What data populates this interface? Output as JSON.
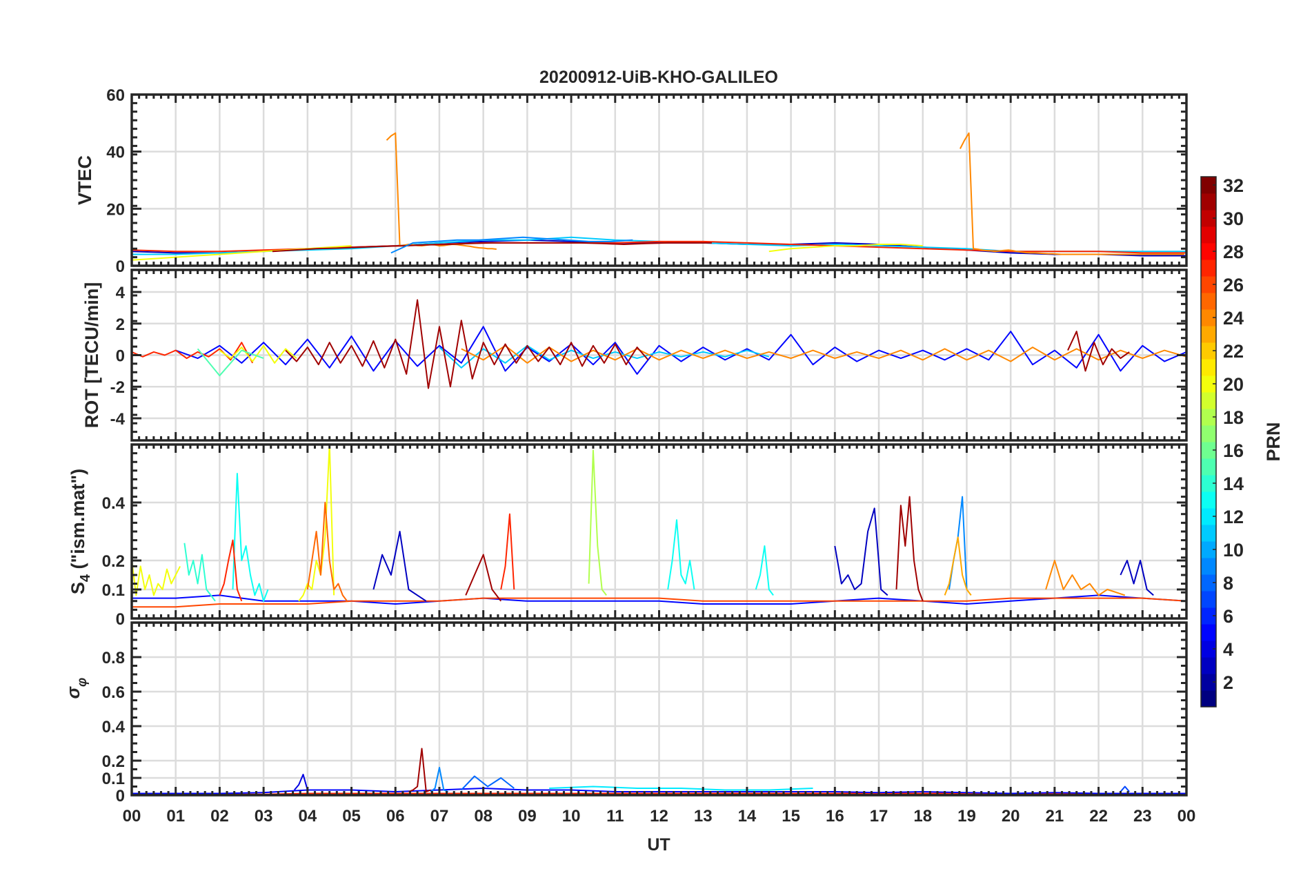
{
  "chart_data": {
    "type": "line",
    "title": "20200912-UiB-KHO-GALILEO",
    "xlabel": "UT",
    "xlim": [
      0,
      24
    ],
    "xticks": [
      "00",
      "01",
      "02",
      "03",
      "04",
      "05",
      "06",
      "07",
      "08",
      "09",
      "10",
      "11",
      "12",
      "13",
      "14",
      "15",
      "16",
      "17",
      "18",
      "19",
      "20",
      "21",
      "22",
      "23",
      "00"
    ],
    "colorbar": {
      "label": "PRN",
      "range": [
        1,
        32
      ],
      "colormap": "jet",
      "ticks": [
        "2",
        "4",
        "6",
        "8",
        "10",
        "12",
        "14",
        "16",
        "18",
        "20",
        "22",
        "24",
        "26",
        "28",
        "30",
        "32"
      ]
    },
    "panels": [
      {
        "name": "vtec",
        "ylabel": "VTEC",
        "ylim": [
          0,
          60
        ],
        "yticks": [
          0,
          20,
          40,
          60
        ],
        "ytick_labels": [
          "0",
          "20",
          "40",
          "60"
        ],
        "series": [
          {
            "prn": 3,
            "t0": 0,
            "dt": 1,
            "v": [
              5,
              4.5,
              4.5,
              5,
              6,
              6.5,
              7,
              8,
              8.5,
              9,
              8.5,
              8,
              8,
              8,
              7.5,
              7.5,
              8,
              7.5,
              6.5,
              5.5,
              4.5,
              4,
              4,
              3.5,
              3.5
            ]
          },
          {
            "prn": 11,
            "t0": 0,
            "dt": 1,
            "v": [
              4,
              4,
              4.5,
              5,
              5.5,
              6,
              7,
              8,
              9,
              9,
              10,
              9,
              8.5,
              8,
              7.5,
              7,
              7.5,
              7,
              6.5,
              6,
              5,
              5,
              5,
              5,
              5
            ]
          },
          {
            "prn": 27,
            "t0": 0,
            "dt": 1,
            "v": [
              5.5,
              5,
              5,
              5.5,
              6,
              6.5,
              7,
              7.5,
              8,
              8,
              8,
              8,
              8.5,
              8.5,
              8,
              7.5,
              7,
              6.5,
              6,
              5.5,
              5,
              5,
              5,
              4.5,
              4.5
            ]
          },
          {
            "prn": 24,
            "t0": 5.8,
            "dt": 0.1,
            "v": [
              44,
              45.5,
              46.5,
              7,
              7.2,
              7.5,
              7.3,
              7.1,
              7,
              7.2,
              7.4,
              7.3,
              7,
              7.1,
              7.3,
              7.5,
              7.4,
              7.2,
              7,
              6.8,
              6.5,
              6.3,
              6.2,
              6,
              6,
              5.8
            ]
          },
          {
            "prn": 24,
            "t0": 18.85,
            "dt": 0.1,
            "v": [
              41,
              44,
              46.5,
              6,
              5.8,
              5.5,
              5.3,
              5.2,
              5,
              5.2,
              5.4,
              5.5,
              5.3,
              5,
              4.8,
              4.6,
              4.5,
              4.5,
              4.4,
              4.3,
              4.2,
              4.2,
              4.1,
              4,
              4,
              4,
              4,
              4,
              4,
              4,
              4,
              4,
              4,
              4,
              4,
              4,
              4,
              4,
              4,
              4,
              4,
              4,
              4,
              4,
              4,
              4,
              4,
              4,
              4,
              4,
              4,
              4
            ]
          },
          {
            "prn": 20,
            "t0": 0,
            "dt": 0.5,
            "v": [
              2,
              2.5,
              3,
              3.5,
              4,
              4.5,
              5,
              5.5,
              6,
              6.5,
              7
            ]
          },
          {
            "prn": 20,
            "t0": 14.5,
            "dt": 0.5,
            "v": [
              5,
              6,
              6.5,
              7,
              7,
              7.5,
              7.5,
              7
            ]
          },
          {
            "prn": 31,
            "t0": 3.2,
            "dt": 0.5,
            "v": [
              5,
              5.5,
              6,
              6.2,
              6.5,
              6.8,
              7,
              7.3,
              7.5,
              7.8,
              8,
              8,
              8,
              8,
              8,
              7.8,
              7.5,
              7.8,
              8,
              8,
              8
            ]
          },
          {
            "prn": 9,
            "t0": 5.9,
            "dt": 0.5,
            "v": [
              4.5,
              8,
              8.5,
              9,
              9,
              9.5,
              10,
              9.5,
              9,
              8.5,
              8.5,
              9
            ]
          }
        ]
      },
      {
        "name": "rot",
        "ylabel": "ROT [TECU/min]",
        "ylim": [
          -5.4,
          5.4
        ],
        "yticks": [
          -4,
          -2,
          0,
          2,
          4
        ],
        "ytick_labels": [
          "-4",
          "-2",
          "0",
          "2",
          "4"
        ],
        "series": [
          {
            "prn": 5,
            "t0": 1,
            "dt": 0.5,
            "v": [
              0.3,
              -0.2,
              0.6,
              -0.5,
              0.8,
              -0.6,
              1.0,
              -0.8,
              1.2,
              -1.0,
              0.9,
              -0.7,
              0.6,
              -0.5,
              1.8,
              -1.0,
              0.5,
              -0.4,
              0.7,
              -0.6,
              0.8,
              -1.2,
              0.6,
              -0.4,
              0.5,
              -0.3,
              0.4,
              -0.3,
              1.3,
              -0.6,
              0.5,
              -0.4,
              0.3,
              -0.2,
              0.3,
              -0.3,
              0.4,
              -0.3,
              1.5,
              -0.6,
              0.3,
              -0.8,
              1.3,
              -1.0,
              0.6,
              -0.4,
              0.2
            ]
          },
          {
            "prn": 27,
            "t0": 0,
            "dt": 0.25,
            "v": [
              0.2,
              -0.1,
              0.2,
              0,
              0.3,
              -0.2,
              0.2,
              -0.1,
              0.4,
              -0.3,
              0.8,
              -0.5
            ]
          },
          {
            "prn": 20,
            "t0": 2,
            "dt": 0.25,
            "v": [
              0.3,
              -0.2,
              0.5,
              -0.4,
              0.6,
              -0.5,
              0.4,
              -0.2
            ]
          },
          {
            "prn": 15,
            "t0": 1.5,
            "dt": 0.5,
            "v": [
              0.4,
              -1.3,
              0.3,
              -0.2
            ]
          },
          {
            "prn": 11,
            "t0": 7,
            "dt": 0.5,
            "v": [
              0.5,
              -0.8,
              0.4,
              -0.5,
              0.6,
              -0.3,
              0.3,
              -0.2,
              0.2,
              -0.2,
              0.2,
              -0.1,
              0.2,
              -0.1,
              0.3,
              -0.1
            ]
          },
          {
            "prn": 24,
            "t0": 7.5,
            "dt": 0.5,
            "v": [
              0.4,
              -0.3,
              0.6,
              -0.5,
              0.5,
              -0.4,
              0.3,
              -0.3,
              0.4,
              -0.3,
              0.3,
              -0.2,
              0.3,
              -0.2,
              0.2,
              -0.2,
              0.3,
              -0.2,
              0.2,
              -0.2,
              0.3,
              -0.3,
              0.4,
              -0.3,
              0.3,
              -0.4,
              0.5,
              -0.3,
              0.4,
              -0.3,
              0.3,
              -0.2,
              0.3,
              -0.1
            ]
          },
          {
            "prn": 31,
            "t0": 3.5,
            "dt": 0.25,
            "v": [
              0.3,
              -0.4,
              0.5,
              -0.6,
              0.8,
              -0.5,
              0.6,
              -0.7,
              0.9,
              -0.8,
              1.0,
              -1.2,
              3.5,
              -2.1,
              1.8,
              -2.0,
              2.2,
              -1.5,
              0.8,
              -0.6,
              0.7,
              -0.5,
              0.6,
              -0.4,
              0.5,
              -0.6,
              0.8,
              -0.7,
              0.6,
              -0.5,
              0.7,
              -0.6,
              0.5,
              -0.3
            ]
          },
          {
            "prn": 31,
            "t0": 21.3,
            "dt": 0.2,
            "v": [
              0.3,
              1.5,
              -1.0,
              0.8,
              -0.6,
              0.4,
              -0.2,
              0.2
            ]
          }
        ]
      },
      {
        "name": "s4",
        "ylabel": "S4 (\"ism.mat\")",
        "ylim": [
          0,
          0.6
        ],
        "yticks": [
          0,
          0.1,
          0.2,
          0.4
        ],
        "ytick_labels": [
          "0",
          "0.1",
          "0.2",
          "0.4"
        ],
        "series": [
          {
            "prn": 5,
            "t0": 0,
            "dt": 1,
            "v": [
              0.07,
              0.07,
              0.08,
              0.06,
              0.06,
              0.06,
              0.05,
              0.06,
              0.07,
              0.06,
              0.06,
              0.06,
              0.06,
              0.05,
              0.05,
              0.05,
              0.06,
              0.07,
              0.06,
              0.05,
              0.06,
              0.07,
              0.08,
              0.07,
              0.06
            ]
          },
          {
            "prn": 26,
            "t0": 0,
            "dt": 1,
            "v": [
              0.04,
              0.04,
              0.05,
              0.05,
              0.05,
              0.06,
              0.06,
              0.06,
              0.07,
              0.07,
              0.07,
              0.07,
              0.07,
              0.06,
              0.06,
              0.06,
              0.06,
              0.06,
              0.06,
              0.06,
              0.07,
              0.07,
              0.07,
              0.07,
              0.06
            ]
          },
          {
            "prn": 20,
            "t0": 0,
            "dt": 0.1,
            "v": [
              0.2,
              0.08,
              0.18,
              0.1,
              0.15,
              0.08,
              0.12,
              0.1,
              0.17,
              0.12,
              0.15,
              0.18
            ]
          },
          {
            "prn": 20,
            "t0": 3.8,
            "dt": 0.1,
            "v": [
              0.06,
              0.08,
              0.12,
              0.1,
              0.2,
              0.15,
              0.28,
              0.6,
              0.08
            ]
          },
          {
            "prn": 18,
            "t0": 10.4,
            "dt": 0.1,
            "v": [
              0.12,
              0.58,
              0.25,
              0.1,
              0.08
            ]
          },
          {
            "prn": 14,
            "t0": 1.2,
            "dt": 0.1,
            "v": [
              0.26,
              0.15,
              0.2,
              0.12,
              0.22,
              0.1,
              0.08,
              0.06
            ]
          },
          {
            "prn": 13,
            "t0": 2.3,
            "dt": 0.1,
            "v": [
              0.1,
              0.5,
              0.2,
              0.25,
              0.15,
              0.08,
              0.12,
              0.06,
              0.1
            ]
          },
          {
            "prn": 13,
            "t0": 12.2,
            "dt": 0.1,
            "v": [
              0.1,
              0.2,
              0.34,
              0.15,
              0.12,
              0.2,
              0.1
            ]
          },
          {
            "prn": 13,
            "t0": 14.2,
            "dt": 0.1,
            "v": [
              0.1,
              0.15,
              0.25,
              0.1,
              0.08
            ]
          },
          {
            "prn": 27,
            "t0": 2.0,
            "dt": 0.1,
            "v": [
              0.08,
              0.12,
              0.2,
              0.27,
              0.1,
              0.06
            ]
          },
          {
            "prn": 27,
            "t0": 8.4,
            "dt": 0.1,
            "v": [
              0.1,
              0.18,
              0.36,
              0.1
            ]
          },
          {
            "prn": 25,
            "t0": 4.0,
            "dt": 0.1,
            "v": [
              0.1,
              0.2,
              0.3,
              0.15,
              0.4,
              0.2,
              0.1,
              0.12,
              0.08,
              0.06
            ]
          },
          {
            "prn": 31,
            "t0": 7.6,
            "dt": 0.2,
            "v": [
              0.08,
              0.15,
              0.22,
              0.1,
              0.06
            ]
          },
          {
            "prn": 31,
            "t0": 17.4,
            "dt": 0.1,
            "v": [
              0.1,
              0.39,
              0.25,
              0.42,
              0.2,
              0.1,
              0.06
            ]
          },
          {
            "prn": 3,
            "t0": 5.5,
            "dt": 0.2,
            "v": [
              0.1,
              0.22,
              0.15,
              0.3,
              0.1,
              0.08,
              0.06
            ]
          },
          {
            "prn": 3,
            "t0": 16.0,
            "dt": 0.15,
            "v": [
              0.25,
              0.12,
              0.15,
              0.1,
              0.12,
              0.3,
              0.38,
              0.1,
              0.08
            ]
          },
          {
            "prn": 3,
            "t0": 22.5,
            "dt": 0.15,
            "v": [
              0.15,
              0.2,
              0.12,
              0.2,
              0.1,
              0.08
            ]
          },
          {
            "prn": 9,
            "t0": 18.6,
            "dt": 0.1,
            "v": [
              0.1,
              0.2,
              0.28,
              0.42,
              0.1
            ]
          },
          {
            "prn": 23,
            "t0": 18.5,
            "dt": 0.1,
            "v": [
              0.08,
              0.12,
              0.2,
              0.28,
              0.15,
              0.1,
              0.08
            ]
          },
          {
            "prn": 24,
            "t0": 20.8,
            "dt": 0.2,
            "v": [
              0.1,
              0.2,
              0.1,
              0.15,
              0.1,
              0.12,
              0.08,
              0.1,
              0.09,
              0.08
            ]
          }
        ]
      },
      {
        "name": "sigma-phi",
        "ylabel": "σφ",
        "ylim": [
          0,
          1
        ],
        "yticks": [
          0,
          0.1,
          0.2,
          0.4,
          0.6,
          0.8
        ],
        "ytick_labels": [
          "0",
          "0.1",
          "0.2",
          "0.4",
          "0.6",
          "0.8"
        ],
        "series": [
          {
            "prn": 27,
            "t0": 0,
            "dt": 1,
            "v": [
              0.005,
              0.005,
              0.005,
              0.005,
              0.01,
              0.01,
              0.01,
              0.01,
              0.01,
              0.01,
              0.01,
              0.01,
              0.01,
              0.01,
              0.01,
              0.01,
              0.01,
              0.01,
              0.01,
              0.01,
              0.01,
              0.01,
              0.01,
              0.01,
              0.01
            ]
          },
          {
            "prn": 5,
            "t0": 0,
            "dt": 1,
            "v": [
              0.01,
              0.01,
              0.01,
              0.015,
              0.03,
              0.03,
              0.02,
              0.03,
              0.04,
              0.03,
              0.03,
              0.02,
              0.02,
              0.02,
              0.02,
              0.02,
              0.02,
              0.015,
              0.02,
              0.015,
              0.01,
              0.015,
              0.01,
              0.01,
              0.01
            ]
          },
          {
            "prn": 12,
            "t0": 9.5,
            "dt": 1,
            "v": [
              0.04,
              0.05,
              0.04,
              0.04,
              0.03,
              0.03,
              0.04
            ]
          },
          {
            "prn": 4,
            "t0": 3.7,
            "dt": 0.1,
            "v": [
              0.03,
              0.06,
              0.12,
              0.03
            ]
          },
          {
            "prn": 9,
            "t0": 6.8,
            "dt": 0.1,
            "v": [
              0.02,
              0.04,
              0.16,
              0.03,
              0.02
            ]
          },
          {
            "prn": 8,
            "t0": 7.5,
            "dt": 0.3,
            "v": [
              0.03,
              0.11,
              0.05,
              0.1,
              0.04
            ]
          },
          {
            "prn": 31,
            "t0": 6.3,
            "dt": 0.1,
            "v": [
              0.02,
              0.03,
              0.05,
              0.27,
              0.02,
              0.03
            ]
          },
          {
            "prn": 7,
            "t0": 22.5,
            "dt": 0.1,
            "v": [
              0.02,
              0.05,
              0.02
            ]
          }
        ]
      }
    ]
  }
}
